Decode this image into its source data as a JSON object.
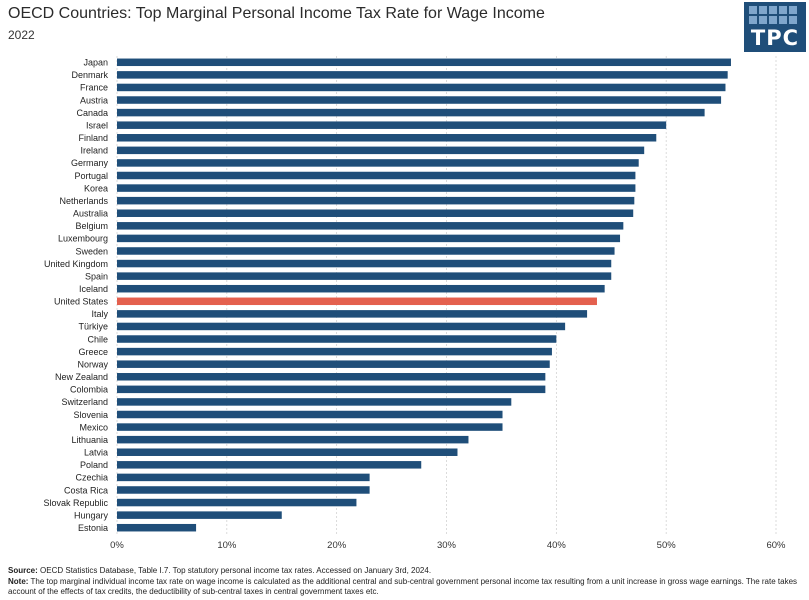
{
  "header": {
    "title": "OECD Countries: Top Marginal Personal Income Tax Rate for Wage Income",
    "subtitle": "2022",
    "logo_text": "TPC"
  },
  "colors": {
    "bar": "#1f4e79",
    "highlight": "#e4604e",
    "grid": "#cccccc",
    "logo_bg": "#1f4e79"
  },
  "chart_data": {
    "type": "bar",
    "orientation": "horizontal",
    "categories": [
      "Japan",
      "Denmark",
      "France",
      "Austria",
      "Canada",
      "Israel",
      "Finland",
      "Ireland",
      "Germany",
      "Portugal",
      "Korea",
      "Netherlands",
      "Australia",
      "Belgium",
      "Luxembourg",
      "Sweden",
      "United Kingdom",
      "Spain",
      "Iceland",
      "United States",
      "Italy",
      "Türkiye",
      "Chile",
      "Greece",
      "Norway",
      "New Zealand",
      "Colombia",
      "Switzerland",
      "Slovenia",
      "Mexico",
      "Lithuania",
      "Latvia",
      "Poland",
      "Czechia",
      "Costa Rica",
      "Slovak Republic",
      "Hungary",
      "Estonia"
    ],
    "values": [
      55.9,
      55.6,
      55.4,
      55.0,
      53.5,
      50.0,
      49.1,
      48.0,
      47.5,
      47.2,
      47.2,
      47.1,
      47.0,
      46.1,
      45.8,
      45.3,
      45.0,
      45.0,
      44.4,
      43.7,
      42.8,
      40.8,
      40.0,
      39.6,
      39.4,
      39.0,
      39.0,
      35.9,
      35.1,
      35.1,
      32.0,
      31.0,
      27.7,
      23.0,
      23.0,
      21.8,
      15.0,
      7.2
    ],
    "highlight": "United States",
    "xlim": [
      0,
      60
    ],
    "xticks": [
      "0%",
      "10%",
      "20%",
      "30%",
      "40%",
      "50%",
      "60%"
    ],
    "grid": true
  },
  "footer": {
    "source_label": "Source:",
    "source_text": " OECD Statistics Database, Table I.7. Top statutory personal income tax rates. Accessed on January 3rd, 2024.",
    "note_label": "Note:",
    "note_text": " The top marginal individual income tax rate on wage income is calculated as the additional central and sub-central government personal income tax resulting from a unit increase in gross wage earnings. The rate takes account of the effects of tax credits, the deductibility of sub-central taxes in central government taxes etc."
  }
}
